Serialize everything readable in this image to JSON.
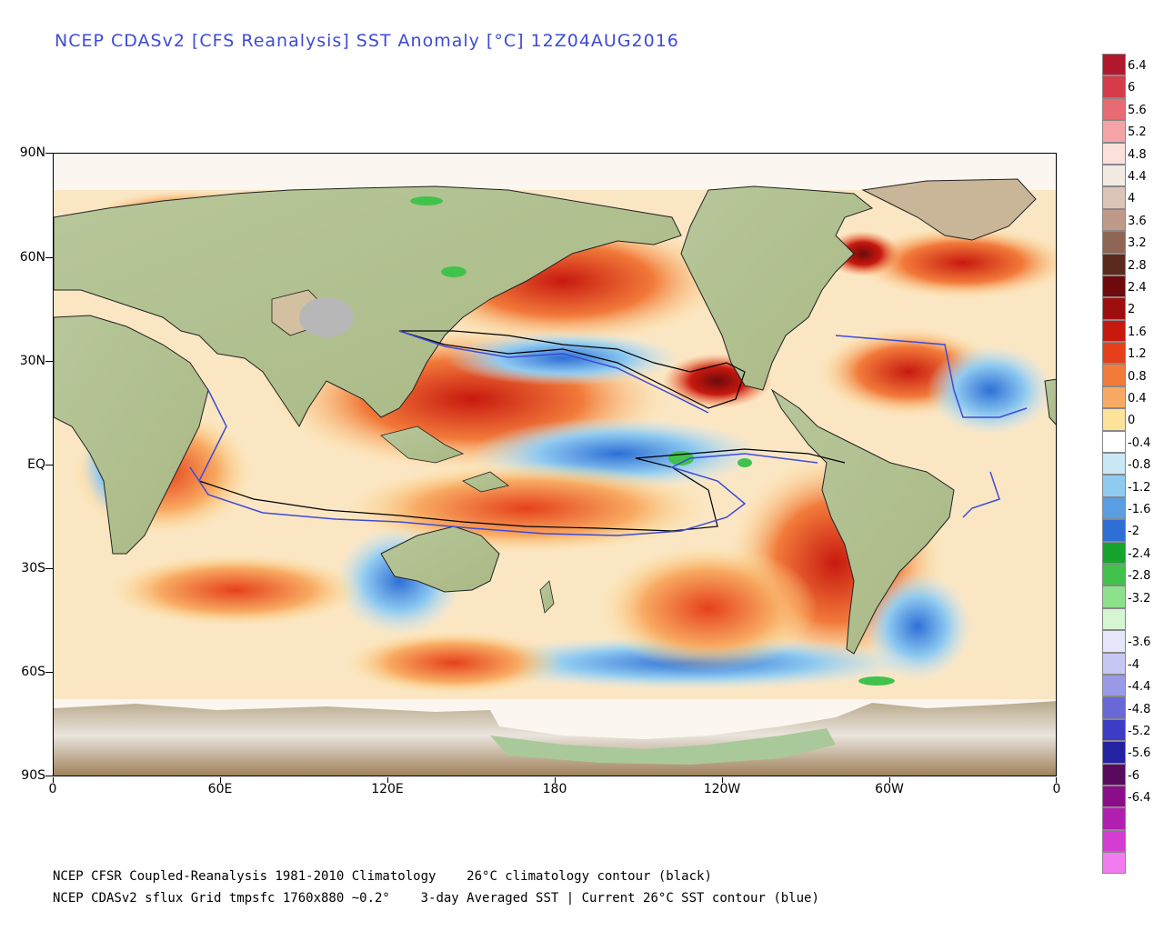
{
  "title": "NCEP CDASv2 [CFS Reanalysis] SST Anomaly [°C] 12Z04AUG2016",
  "lat_labels": [
    "90N",
    "60N",
    "30N",
    "EQ",
    "30S",
    "60S",
    "90S"
  ],
  "lon_labels": [
    "0",
    "60E",
    "120E",
    "180",
    "120W",
    "60W",
    "0"
  ],
  "footer": {
    "line1_left": "NCEP CFSR Coupled-Reanalysis 1981-2010 Climatology",
    "line1_right": "26°C climatology contour (black)",
    "line2_left": "NCEP CDASv2 sflux Grid tmpsfc 1760x880 ~0.2°",
    "line2_right": "3-day Averaged SST | Current 26°C SST contour (blue)"
  },
  "colorbar": [
    {
      "label": "6.4",
      "color": "#b2182b"
    },
    {
      "label": "6",
      "color": "#d63b4a"
    },
    {
      "label": "5.6",
      "color": "#e86a72"
    },
    {
      "label": "5.2",
      "color": "#f4a3a6"
    },
    {
      "label": "4.8",
      "color": "#fbe0dc"
    },
    {
      "label": "4.4",
      "color": "#f3eae4"
    },
    {
      "label": "4",
      "color": "#dcc4b8"
    },
    {
      "label": "3.6",
      "color": "#c09a88"
    },
    {
      "label": "3.2",
      "color": "#8f6553"
    },
    {
      "label": "2.8",
      "color": "#5b2a1c"
    },
    {
      "label": "2.4",
      "color": "#6e0a0a"
    },
    {
      "label": "2",
      "color": "#9e0e0e"
    },
    {
      "label": "1.6",
      "color": "#c8190f"
    },
    {
      "label": "1.2",
      "color": "#e6401a"
    },
    {
      "label": "0.8",
      "color": "#f27a3a"
    },
    {
      "label": "0.4",
      "color": "#f8aa62"
    },
    {
      "label": "0",
      "color": "#fde39a"
    },
    {
      "label": "-0.4",
      "color": "#ffffff"
    },
    {
      "label": "-0.8",
      "color": "#cbe8f7"
    },
    {
      "label": "-1.2",
      "color": "#8fcaf0"
    },
    {
      "label": "-1.6",
      "color": "#5a9fe3"
    },
    {
      "label": "-2",
      "color": "#2e6fd6"
    },
    {
      "label": "-2.4",
      "color": "#16a32e"
    },
    {
      "label": "-2.8",
      "color": "#41c24c"
    },
    {
      "label": "-3.2",
      "color": "#8ee18b"
    },
    {
      "label": "",
      "color": "#d6f5d3"
    },
    {
      "label": "-3.6",
      "color": "#e6e6fb"
    },
    {
      "label": "-4",
      "color": "#c7c7f5"
    },
    {
      "label": "-4.4",
      "color": "#9a9ae9"
    },
    {
      "label": "-4.8",
      "color": "#6868d8"
    },
    {
      "label": "-5.2",
      "color": "#3c3cc6"
    },
    {
      "label": "-5.6",
      "color": "#2222a2"
    },
    {
      "label": "-6",
      "color": "#5a0a5e"
    },
    {
      "label": "-6.4",
      "color": "#8c0d8a"
    },
    {
      "label": "",
      "color": "#b21fb0"
    },
    {
      "label": "",
      "color": "#d43bd2"
    },
    {
      "label": "",
      "color": "#f27bf0"
    }
  ]
}
